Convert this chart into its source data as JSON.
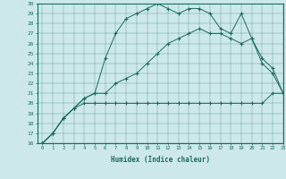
{
  "title": "",
  "xlabel": "Humidex (Indice chaleur)",
  "xlim": [
    -0.5,
    23
  ],
  "ylim": [
    16,
    30
  ],
  "xticks": [
    0,
    1,
    2,
    3,
    4,
    5,
    6,
    7,
    8,
    9,
    10,
    11,
    12,
    13,
    14,
    15,
    16,
    17,
    18,
    19,
    20,
    21,
    22,
    23
  ],
  "yticks": [
    16,
    17,
    18,
    19,
    20,
    21,
    22,
    23,
    24,
    25,
    26,
    27,
    28,
    29,
    30
  ],
  "color": "#1a6b5e",
  "bg_color": "#cce8e8",
  "line1_x": [
    0,
    1,
    2,
    3,
    4,
    5,
    6,
    7,
    8,
    9,
    10,
    11,
    12,
    13,
    14,
    15,
    16,
    17,
    18,
    19,
    20,
    21,
    22,
    23
  ],
  "line1_y": [
    16,
    17,
    18.5,
    19.5,
    20,
    20,
    20,
    20,
    20,
    20,
    20,
    20,
    20,
    20,
    20,
    20,
    20,
    20,
    20,
    20,
    20,
    20,
    21,
    21
  ],
  "line2_x": [
    0,
    1,
    2,
    3,
    4,
    5,
    6,
    7,
    8,
    9,
    10,
    11,
    12,
    13,
    14,
    15,
    16,
    17,
    18,
    19,
    20,
    21,
    22,
    23
  ],
  "line2_y": [
    16,
    17,
    18.5,
    19.5,
    20.5,
    21,
    21,
    22,
    22.5,
    23,
    24,
    25,
    26,
    26.5,
    27,
    27.5,
    27,
    27,
    26.5,
    26,
    26.5,
    24.5,
    23.5,
    21
  ],
  "line3_x": [
    0,
    1,
    2,
    3,
    4,
    5,
    6,
    7,
    8,
    9,
    10,
    11,
    12,
    13,
    14,
    15,
    16,
    17,
    18,
    19,
    20,
    21,
    22,
    23
  ],
  "line3_y": [
    16,
    17,
    18.5,
    19.5,
    20.5,
    21,
    24.5,
    27,
    28.5,
    29,
    29.5,
    30,
    29.5,
    29,
    29.5,
    29.5,
    29,
    27.5,
    27,
    29,
    26.5,
    24,
    23,
    21
  ]
}
